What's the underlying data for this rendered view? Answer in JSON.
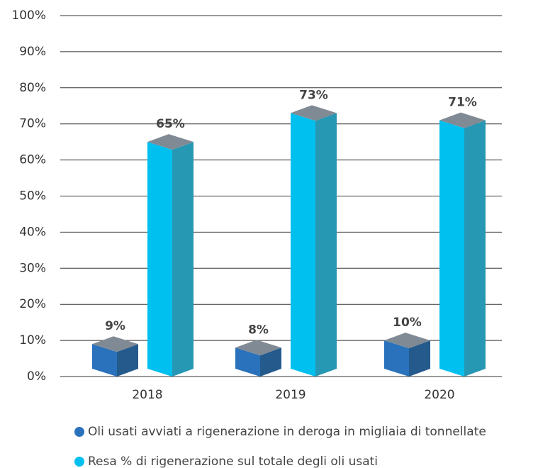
{
  "chart_data": {
    "type": "bar3d",
    "categories": [
      "2018",
      "2019",
      "2020"
    ],
    "series": [
      {
        "name": "Oli usati avviati a rigenerazione in deroga in migliaia di tonnellate",
        "color": "#2a72bb",
        "side_color": "#245a8c",
        "values": [
          9,
          8,
          10
        ],
        "value_labels": [
          "9%",
          "8%",
          "10%"
        ]
      },
      {
        "name": "Resa % di rigenerazione sul totale degli oli usati",
        "color": "#00c0ef",
        "side_color": "#2798b4",
        "values": [
          65,
          73,
          71
        ],
        "value_labels": [
          "65%",
          "73%",
          "71%"
        ]
      }
    ],
    "top_color": "#808a94",
    "ylim": [
      0,
      100
    ],
    "yticks": [
      {
        "value": 0,
        "label": "0%"
      },
      {
        "value": 10,
        "label": "10%"
      },
      {
        "value": 20,
        "label": "20%"
      },
      {
        "value": 30,
        "label": "30%"
      },
      {
        "value": 40,
        "label": "40%"
      },
      {
        "value": 50,
        "label": "50%"
      },
      {
        "value": 60,
        "label": "60%"
      },
      {
        "value": 70,
        "label": "70%"
      },
      {
        "value": 80,
        "label": "80%"
      },
      {
        "value": 90,
        "label": "90%"
      },
      {
        "value": 100,
        "label": "100%"
      }
    ],
    "grid": true
  }
}
